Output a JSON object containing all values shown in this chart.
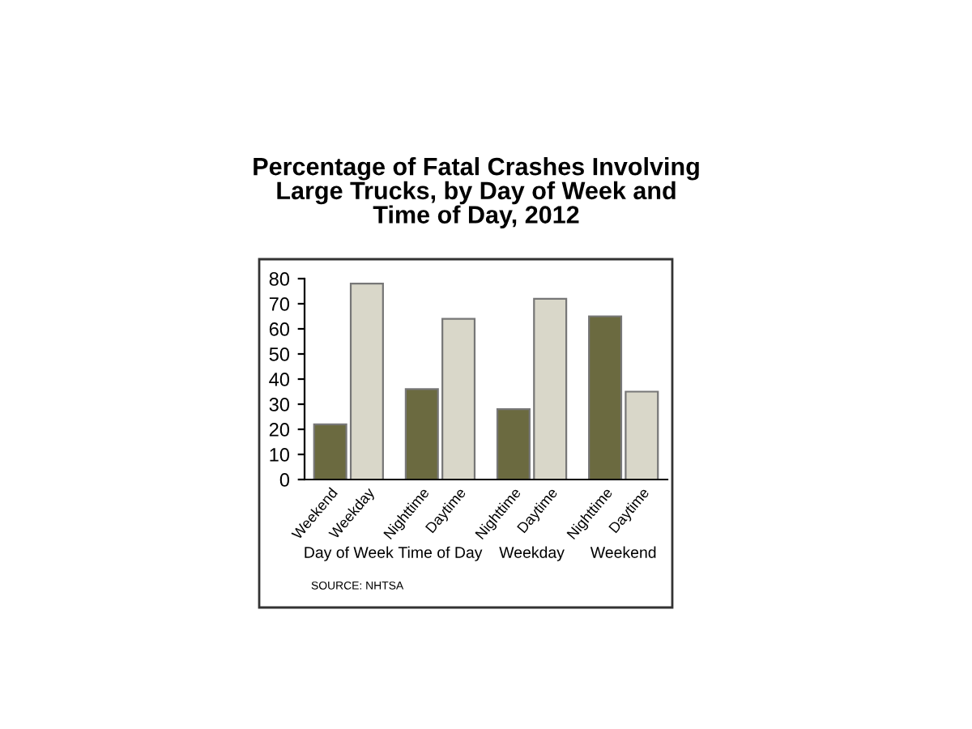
{
  "chart_data": {
    "type": "bar",
    "title": "Percentage of Fatal Crashes Involving\nLarge Trucks, by Day of Week and\nTime of Day, 2012",
    "categories": [
      "Weekend",
      "Weekday",
      "Nighttime",
      "Daytime",
      "Nighttime",
      "Daytime",
      "Nighttime",
      "Daytime"
    ],
    "values": [
      22,
      78,
      36,
      64,
      28,
      72,
      65,
      35
    ],
    "colors": [
      "#6b6a40",
      "#d9d7c9",
      "#6b6a40",
      "#d9d7c9",
      "#6b6a40",
      "#d9d7c9",
      "#6b6a40",
      "#d9d7c9"
    ],
    "ylim": [
      0,
      80
    ],
    "yticks": [
      0,
      10,
      20,
      30,
      40,
      50,
      60,
      70,
      80
    ],
    "grid": false,
    "legend": false,
    "annotations": [
      "Day of Week",
      "Time of Day",
      "Weekday",
      "Weekend",
      "SOURCE: NHTSA"
    ]
  }
}
